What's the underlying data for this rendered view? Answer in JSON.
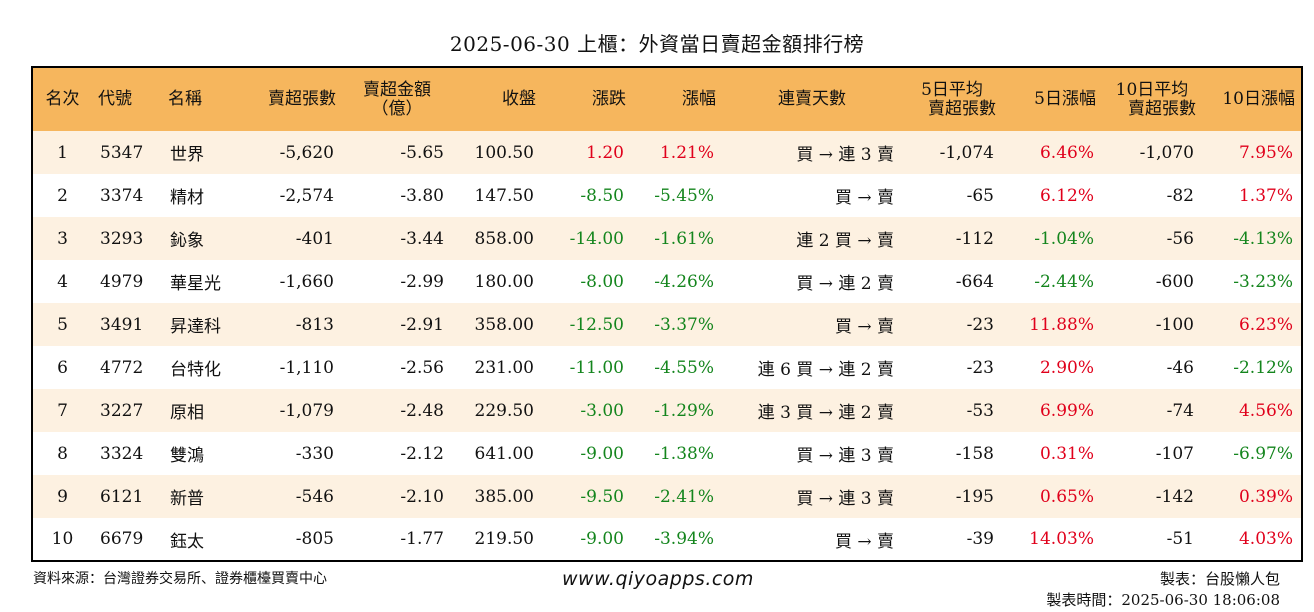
{
  "title": "2025-06-30 上櫃：外資當日賣超金額排行榜",
  "columns": {
    "rank": "名次",
    "code": "代號",
    "name": "名稱",
    "sell_shares": "賣超張數",
    "sell_amount_1": "賣超金額",
    "sell_amount_2": "（億）",
    "close": "收盤",
    "change": "漲跌",
    "change_pct": "漲幅",
    "streak": "連賣天數",
    "avg5_1": "5日平均",
    "avg5_2": "賣超張數",
    "pct5": "5日漲幅",
    "avg10_1": "10日平均",
    "avg10_2": "賣超張數",
    "pct10": "10日漲幅"
  },
  "rows": [
    {
      "rank": "1",
      "code": "5347",
      "name": "世界",
      "sell_shares": "-5,620",
      "sell_amount": "-5.65",
      "close": "100.50",
      "change": "1.20",
      "change_dir": "up",
      "change_pct": "1.21%",
      "change_pct_dir": "up",
      "streak": "買 → 連 3 賣",
      "avg5": "-1,074",
      "pct5": "6.46%",
      "pct5_dir": "up",
      "avg10": "-1,070",
      "pct10": "7.95%",
      "pct10_dir": "up"
    },
    {
      "rank": "2",
      "code": "3374",
      "name": "精材",
      "sell_shares": "-2,574",
      "sell_amount": "-3.80",
      "close": "147.50",
      "change": "-8.50",
      "change_dir": "down",
      "change_pct": "-5.45%",
      "change_pct_dir": "down",
      "streak": "買 → 賣",
      "avg5": "-65",
      "pct5": "6.12%",
      "pct5_dir": "up",
      "avg10": "-82",
      "pct10": "1.37%",
      "pct10_dir": "up"
    },
    {
      "rank": "3",
      "code": "3293",
      "name": "鈊象",
      "sell_shares": "-401",
      "sell_amount": "-3.44",
      "close": "858.00",
      "change": "-14.00",
      "change_dir": "down",
      "change_pct": "-1.61%",
      "change_pct_dir": "down",
      "streak": "連 2 買 → 賣",
      "avg5": "-112",
      "pct5": "-1.04%",
      "pct5_dir": "down",
      "avg10": "-56",
      "pct10": "-4.13%",
      "pct10_dir": "down"
    },
    {
      "rank": "4",
      "code": "4979",
      "name": "華星光",
      "sell_shares": "-1,660",
      "sell_amount": "-2.99",
      "close": "180.00",
      "change": "-8.00",
      "change_dir": "down",
      "change_pct": "-4.26%",
      "change_pct_dir": "down",
      "streak": "買 → 連 2 賣",
      "avg5": "-664",
      "pct5": "-2.44%",
      "pct5_dir": "down",
      "avg10": "-600",
      "pct10": "-3.23%",
      "pct10_dir": "down"
    },
    {
      "rank": "5",
      "code": "3491",
      "name": "昇達科",
      "sell_shares": "-813",
      "sell_amount": "-2.91",
      "close": "358.00",
      "change": "-12.50",
      "change_dir": "down",
      "change_pct": "-3.37%",
      "change_pct_dir": "down",
      "streak": "買 → 賣",
      "avg5": "-23",
      "pct5": "11.88%",
      "pct5_dir": "up",
      "avg10": "-100",
      "pct10": "6.23%",
      "pct10_dir": "up"
    },
    {
      "rank": "6",
      "code": "4772",
      "name": "台特化",
      "sell_shares": "-1,110",
      "sell_amount": "-2.56",
      "close": "231.00",
      "change": "-11.00",
      "change_dir": "down",
      "change_pct": "-4.55%",
      "change_pct_dir": "down",
      "streak": "連 6 買 → 連 2 賣",
      "avg5": "-23",
      "pct5": "2.90%",
      "pct5_dir": "up",
      "avg10": "-46",
      "pct10": "-2.12%",
      "pct10_dir": "down"
    },
    {
      "rank": "7",
      "code": "3227",
      "name": "原相",
      "sell_shares": "-1,079",
      "sell_amount": "-2.48",
      "close": "229.50",
      "change": "-3.00",
      "change_dir": "down",
      "change_pct": "-1.29%",
      "change_pct_dir": "down",
      "streak": "連 3 買 → 連 2 賣",
      "avg5": "-53",
      "pct5": "6.99%",
      "pct5_dir": "up",
      "avg10": "-74",
      "pct10": "4.56%",
      "pct10_dir": "up"
    },
    {
      "rank": "8",
      "code": "3324",
      "name": "雙鴻",
      "sell_shares": "-330",
      "sell_amount": "-2.12",
      "close": "641.00",
      "change": "-9.00",
      "change_dir": "down",
      "change_pct": "-1.38%",
      "change_pct_dir": "down",
      "streak": "買 → 連 3 賣",
      "avg5": "-158",
      "pct5": "0.31%",
      "pct5_dir": "up",
      "avg10": "-107",
      "pct10": "-6.97%",
      "pct10_dir": "down"
    },
    {
      "rank": "9",
      "code": "6121",
      "name": "新普",
      "sell_shares": "-546",
      "sell_amount": "-2.10",
      "close": "385.00",
      "change": "-9.50",
      "change_dir": "down",
      "change_pct": "-2.41%",
      "change_pct_dir": "down",
      "streak": "買 → 連 3 賣",
      "avg5": "-195",
      "pct5": "0.65%",
      "pct5_dir": "up",
      "avg10": "-142",
      "pct10": "0.39%",
      "pct10_dir": "up"
    },
    {
      "rank": "10",
      "code": "6679",
      "name": "鈺太",
      "sell_shares": "-805",
      "sell_amount": "-1.77",
      "close": "219.50",
      "change": "-9.00",
      "change_dir": "down",
      "change_pct": "-3.94%",
      "change_pct_dir": "down",
      "streak": "買 → 賣",
      "avg5": "-39",
      "pct5": "14.03%",
      "pct5_dir": "up",
      "avg10": "-51",
      "pct10": "4.03%",
      "pct10_dir": "up"
    }
  ],
  "footer": {
    "source": "資料來源：台灣證券交易所、證券櫃檯買賣中心",
    "website": "www.qiyoapps.com",
    "maker": "製表：台股懶人包",
    "time": "製表時間：2025-06-30 18:06:08"
  },
  "colors": {
    "header_bg": "#f6b65d",
    "odd_row_bg": "#fdf1e1",
    "up": "#e0001b",
    "down": "#14851d"
  }
}
